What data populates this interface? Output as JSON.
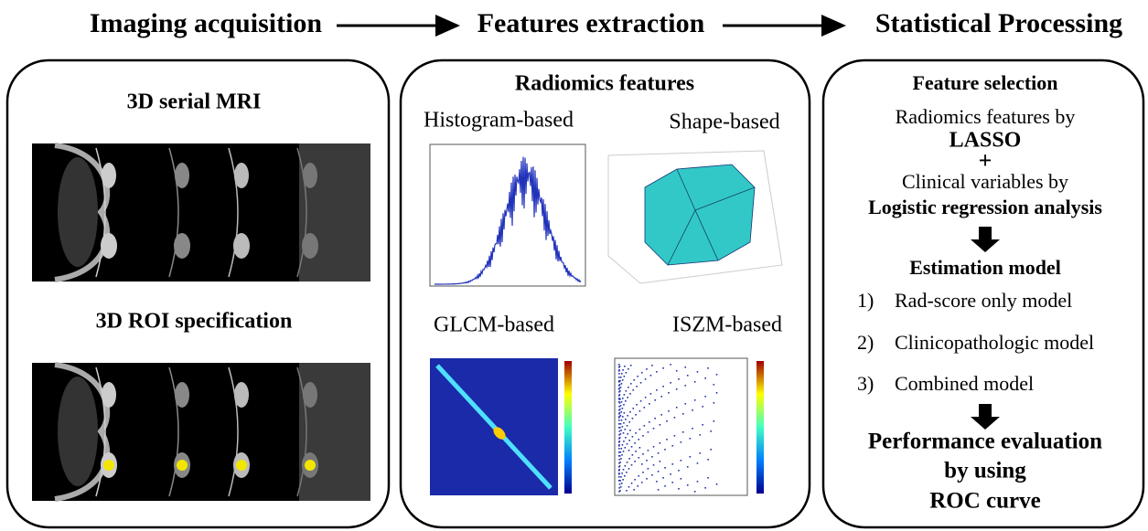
{
  "header": {
    "steps": [
      "Imaging acquisition",
      "Features extraction",
      "Statistical Processing"
    ]
  },
  "acquisition": {
    "title_top": "3D serial MRI",
    "title_bottom": "3D ROI specification"
  },
  "features": {
    "title": "Radiomics features",
    "panels": [
      "Histogram-based",
      "Shape-based",
      "GLCM-based",
      "ISZM-based"
    ]
  },
  "statistics": {
    "title": "Feature selection",
    "line1": "Radiomics features by",
    "line2": "LASSO",
    "plus": "+",
    "line3": "Clinical variables by",
    "line4": "Logistic regression analysis",
    "estimation_title": "Estimation model",
    "models": [
      {
        "num": "1)",
        "label": "Rad-score only model"
      },
      {
        "num": "2)",
        "label": "Clinicopathologic model"
      },
      {
        "num": "3)",
        "label": "Combined model"
      }
    ],
    "result": [
      "Performance evaluation",
      "by using",
      "ROC curve"
    ]
  }
}
